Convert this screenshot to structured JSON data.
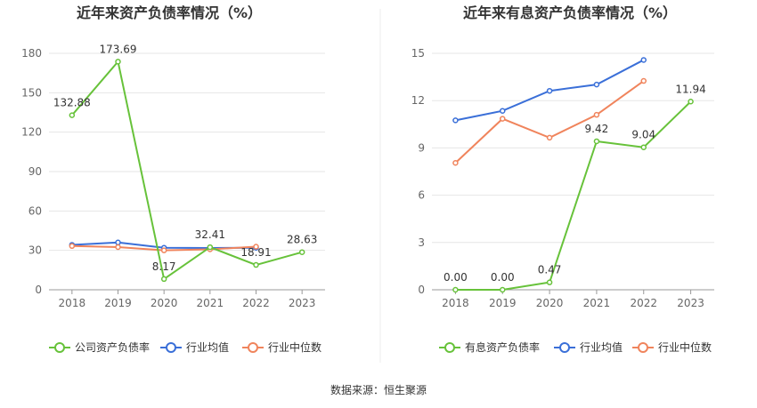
{
  "source_text": "数据来源：恒生聚源",
  "chart_data": [
    {
      "type": "line",
      "title": "近年来资产负债率情况（%）",
      "categories": [
        "2018",
        "2019",
        "2020",
        "2021",
        "2022",
        "2023"
      ],
      "ylim": [
        0,
        180
      ],
      "yticks": [
        0,
        30,
        60,
        90,
        120,
        150,
        180
      ],
      "grid": true,
      "legend_position": "bottom",
      "series": [
        {
          "name": "公司资产负债率",
          "color": "#67c23a",
          "values": [
            132.88,
            173.69,
            8.17,
            32.41,
            18.91,
            28.63
          ],
          "labels": [
            "132.88",
            "173.69",
            "8.17",
            "32.41",
            "18.91",
            "28.63"
          ]
        },
        {
          "name": "行业均值",
          "color": "#3a6fd8",
          "values": [
            34.2,
            36.0,
            32.0,
            31.8,
            32.0,
            null
          ]
        },
        {
          "name": "行业中位数",
          "color": "#f0845c",
          "values": [
            33.3,
            32.5,
            30.0,
            30.8,
            32.8,
            null
          ]
        }
      ]
    },
    {
      "type": "line",
      "title": "近年来有息资产负债率情况（%）",
      "categories": [
        "2018",
        "2019",
        "2020",
        "2021",
        "2022",
        "2023"
      ],
      "ylim": [
        0,
        15
      ],
      "yticks": [
        0,
        3,
        6,
        9,
        12,
        15
      ],
      "grid": true,
      "legend_position": "bottom",
      "series": [
        {
          "name": "有息资产负债率",
          "color": "#67c23a",
          "values": [
            0.0,
            0.0,
            0.47,
            9.42,
            9.04,
            11.94
          ],
          "labels": [
            "0.00",
            "0.00",
            "0.47",
            "9.42",
            "9.04",
            "11.94"
          ]
        },
        {
          "name": "行业均值",
          "color": "#3a6fd8",
          "values": [
            10.75,
            11.35,
            12.62,
            13.02,
            14.58,
            null
          ]
        },
        {
          "name": "行业中位数",
          "color": "#f0845c",
          "values": [
            8.05,
            10.85,
            9.65,
            11.1,
            13.25,
            null
          ]
        }
      ]
    }
  ]
}
